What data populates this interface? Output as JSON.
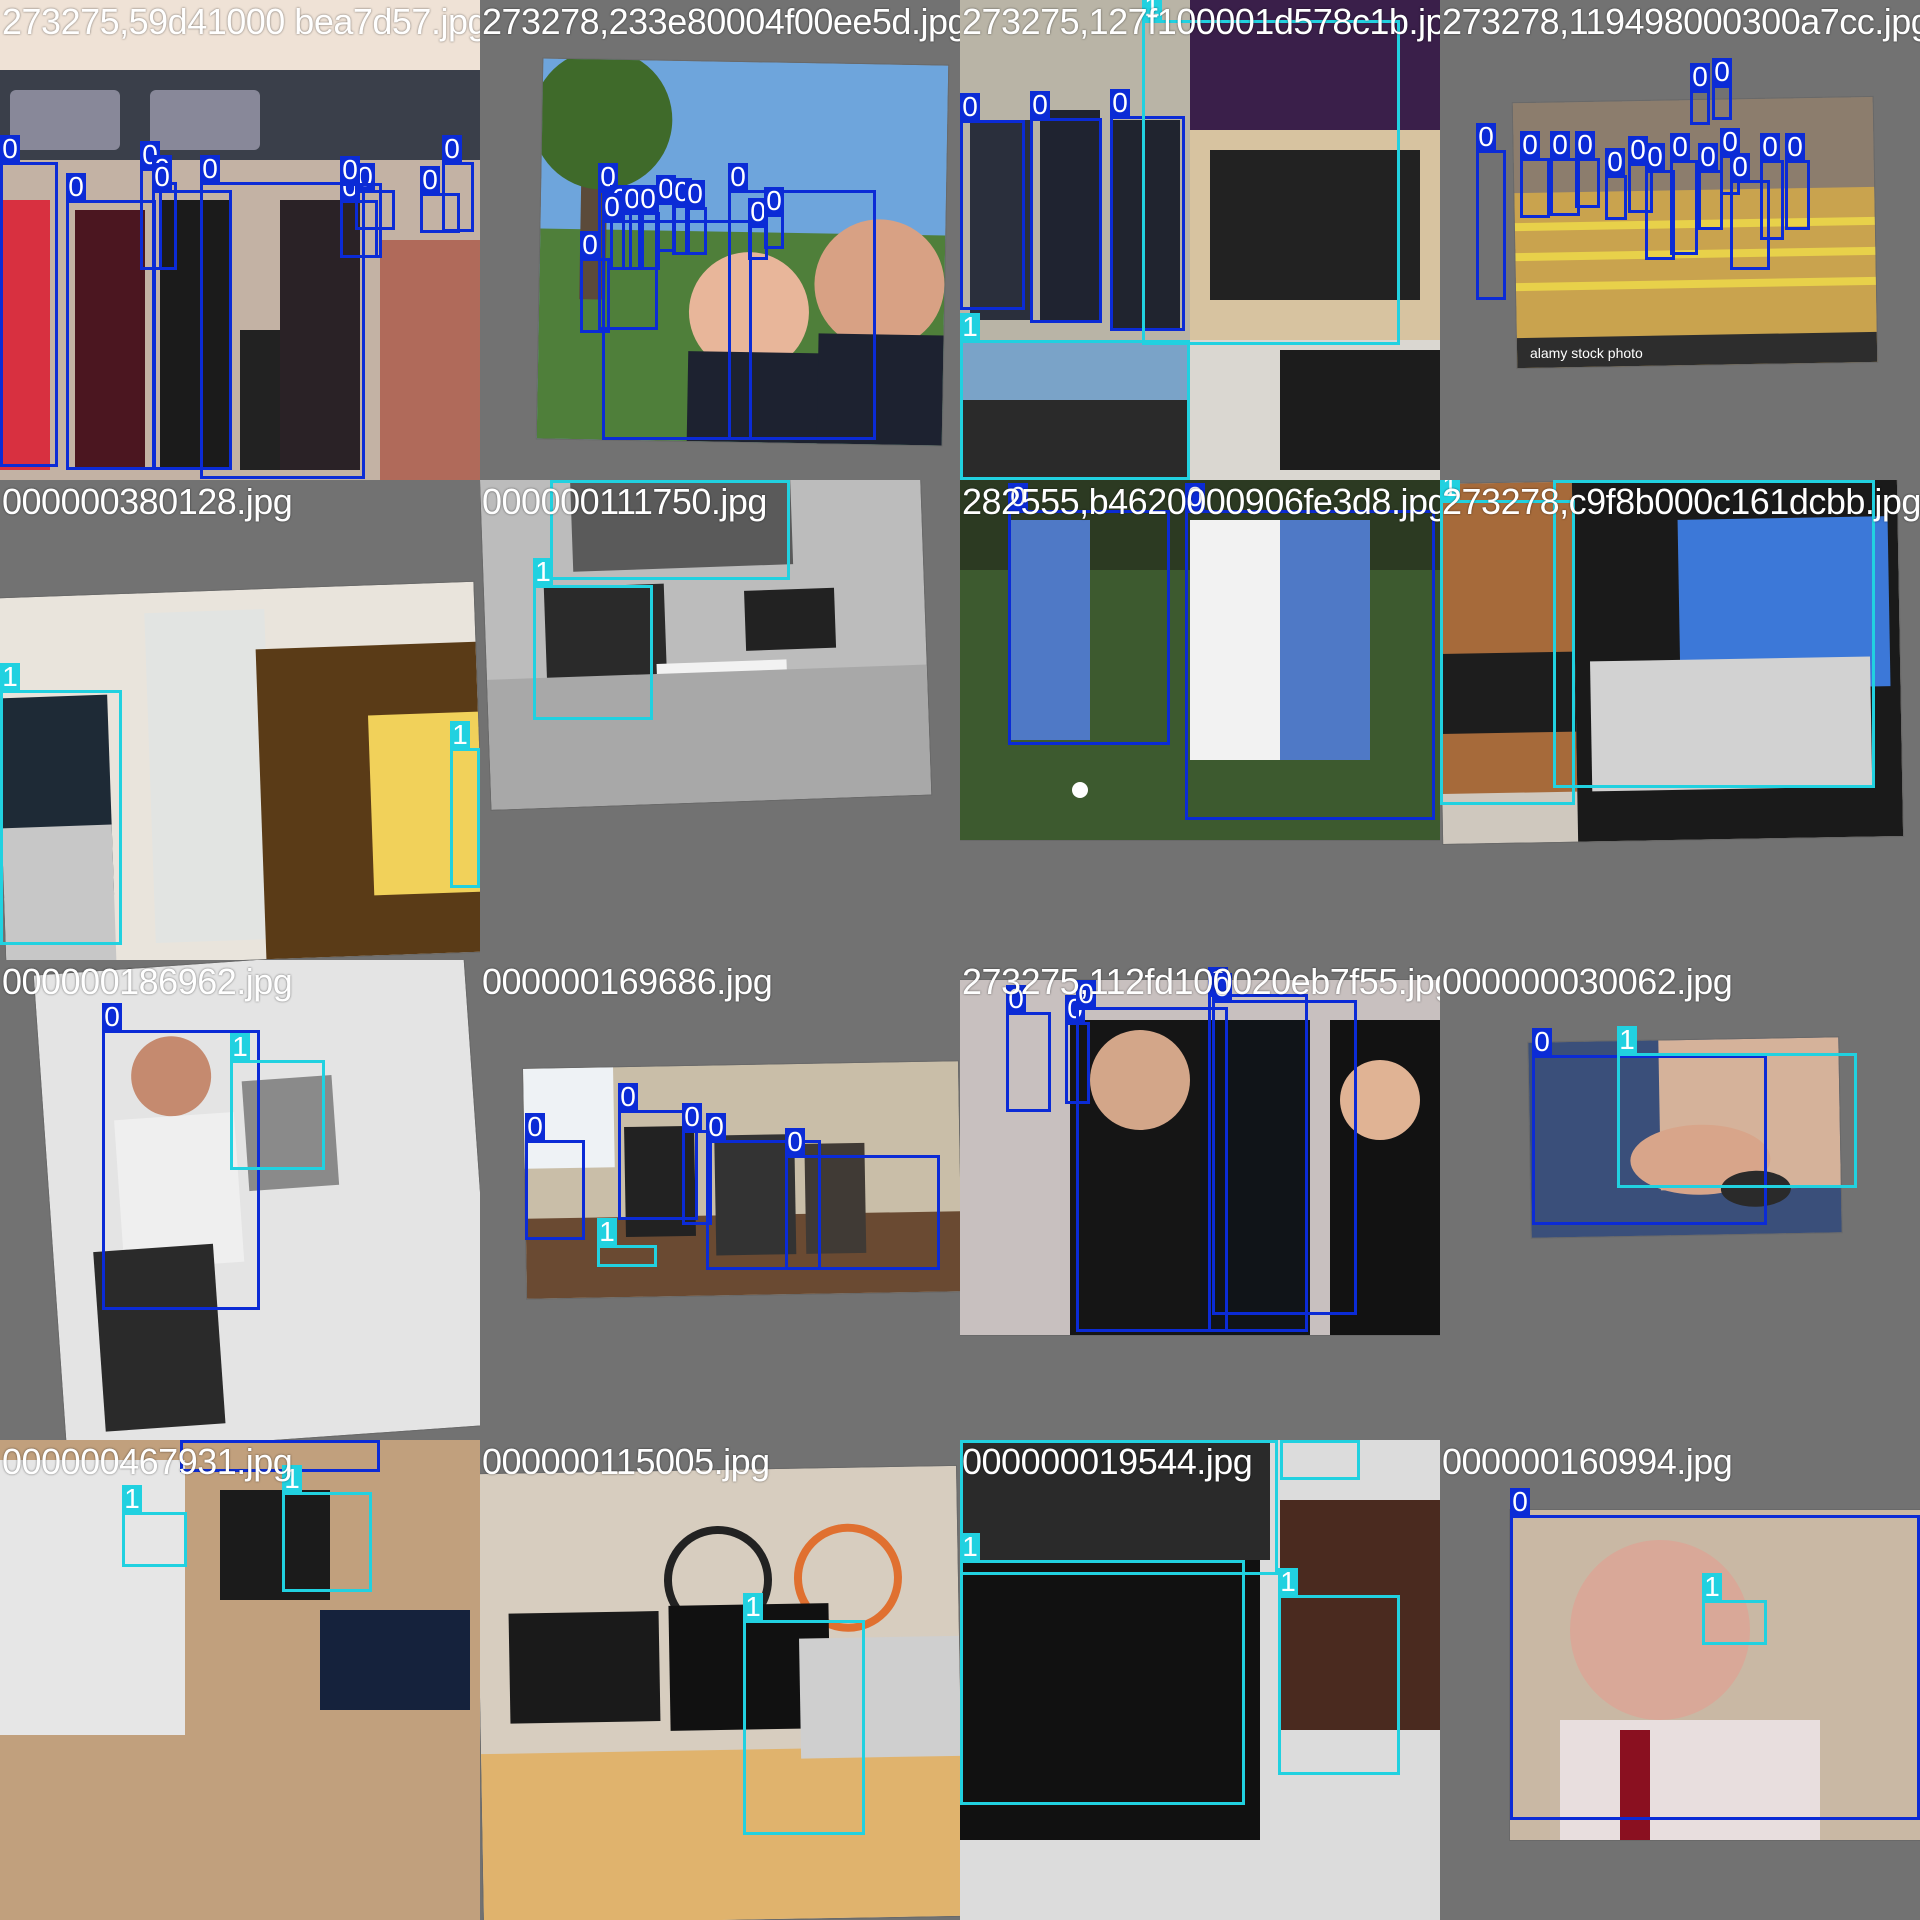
{
  "colors": {
    "class0": "#0b2bd6",
    "class1": "#21d1e0",
    "background": "#727272"
  },
  "tiles": [
    {
      "filename": "273275,59d41000 bea7d57.jpg",
      "scene": "train",
      "watermark": "",
      "boxes": [
        "0",
        "0",
        "0",
        "0",
        "0",
        "0",
        "0",
        "0",
        "0",
        "0",
        "0"
      ]
    },
    {
      "filename": "273278,233e80004f00ee5d.jpg",
      "scene": "park",
      "watermark": "",
      "boxes": [
        "0",
        "0",
        "0",
        "0",
        "0",
        "0",
        "0",
        "0",
        "0",
        "0",
        "0",
        "0"
      ]
    },
    {
      "filename": "273275,127f100001d578c1b.jpg",
      "scene": "men-laptops",
      "watermark": "",
      "boxes": [
        "0",
        "0",
        "0",
        "1",
        "1"
      ]
    },
    {
      "filename": "273278,119498000300a7cc.jpg",
      "scene": "crowd-street",
      "watermark": "alamy stock photo",
      "boxes": [
        "0",
        "0",
        "0",
        "0",
        "0",
        "0",
        "0",
        "0",
        "0",
        "0",
        "0",
        "0",
        "0",
        "0",
        "0"
      ]
    },
    {
      "filename": "000000380128.jpg",
      "scene": "room-laptop",
      "watermark": "",
      "boxes": [
        "1",
        "1"
      ]
    },
    {
      "filename": "000000111750.jpg",
      "scene": "desk-bw",
      "watermark": "",
      "boxes": [
        "1",
        "1"
      ]
    },
    {
      "filename": "282555,b4620000906fe3d8.jpg",
      "scene": "hockey",
      "watermark": "",
      "boxes": [
        "0",
        "0"
      ]
    },
    {
      "filename": "273278,c9f8b000c161dcbb.jpg",
      "scene": "two-laptops",
      "watermark": "",
      "boxes": [
        "1",
        "1"
      ]
    },
    {
      "filename": "000000186962.jpg",
      "scene": "woman-chair",
      "watermark": "",
      "boxes": [
        "0",
        "1"
      ]
    },
    {
      "filename": "000000169686.jpg",
      "scene": "living-room",
      "watermark": "",
      "boxes": [
        "0",
        "0",
        "0",
        "0",
        "0",
        "1"
      ]
    },
    {
      "filename": "273275,112fd100020eb7f55.jpg",
      "scene": "uniforms",
      "watermark": "",
      "boxes": [
        "0",
        "0",
        "0",
        "0",
        "0"
      ]
    },
    {
      "filename": "000000030062.jpg",
      "scene": "hand-mouse",
      "watermark": "",
      "boxes": [
        "0",
        "1"
      ]
    },
    {
      "filename": "000000467931.jpg",
      "scene": "floor-items",
      "watermark": "",
      "boxes": [
        "0",
        "1",
        "1"
      ]
    },
    {
      "filename": "000000115005.jpg",
      "scene": "office-bike",
      "watermark": "",
      "boxes": [
        "1"
      ]
    },
    {
      "filename": "000000019544.jpg",
      "scene": "keyboards",
      "watermark": "",
      "boxes": [
        "1",
        "1",
        "1",
        "1"
      ]
    },
    {
      "filename": "000000160994.jpg",
      "scene": "man-glasses",
      "watermark": "",
      "boxes": [
        "0",
        "1"
      ]
    }
  ]
}
